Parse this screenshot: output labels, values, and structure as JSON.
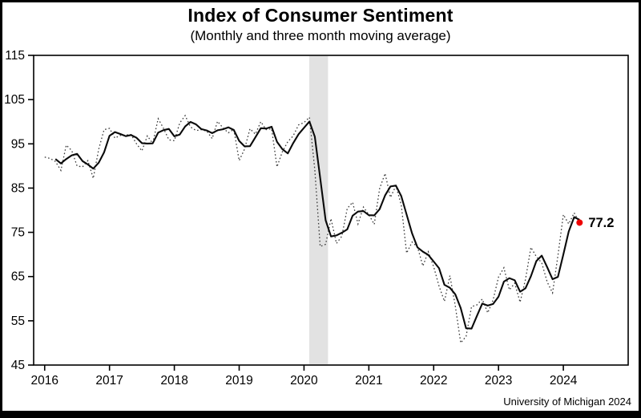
{
  "chart_data": {
    "type": "line",
    "title": "Index of Consumer Sentiment",
    "subtitle": "(Monthly and three month moving average)",
    "source": "University of Michigan 2024",
    "xlabel": "",
    "ylabel": "",
    "ylim": [
      45,
      115
    ],
    "y_ticks": [
      45,
      55,
      65,
      75,
      85,
      95,
      105,
      115
    ],
    "xlim": [
      2015.83,
      2025.0
    ],
    "x_ticks": [
      2016,
      2017,
      2018,
      2019,
      2020,
      2021,
      2022,
      2023,
      2024
    ],
    "grid": false,
    "legend": "none",
    "recession_band": [
      2020.08,
      2020.37
    ],
    "band_color": "#e2e2e2",
    "last_value_label": "77.2",
    "label_color": "#ee0000",
    "series": [
      {
        "name": "Monthly",
        "style": "dotted",
        "start_year": 2016,
        "start_month": 1,
        "values": [
          92.0,
          91.7,
          91.0,
          89.0,
          94.7,
          93.5,
          90.0,
          89.8,
          91.2,
          87.2,
          93.8,
          98.2,
          98.5,
          96.3,
          96.9,
          97.0,
          97.1,
          95.0,
          93.4,
          96.8,
          95.1,
          100.7,
          98.5,
          95.9,
          95.7,
          99.7,
          101.4,
          98.8,
          98.0,
          98.2,
          97.9,
          96.2,
          100.1,
          98.6,
          97.5,
          98.3,
          91.2,
          93.8,
          98.4,
          97.2,
          100.0,
          98.2,
          98.4,
          89.8,
          93.2,
          95.5,
          96.8,
          99.3,
          99.8,
          101.0,
          89.1,
          71.8,
          72.3,
          78.1,
          72.5,
          74.1,
          80.4,
          81.8,
          76.9,
          80.7,
          79.0,
          76.8,
          84.9,
          88.3,
          82.9,
          85.5,
          81.2,
          70.3,
          72.8,
          71.7,
          67.4,
          70.6,
          67.2,
          62.8,
          59.4,
          65.2,
          58.4,
          50.0,
          51.5,
          58.2,
          58.6,
          59.9,
          56.8,
          59.7,
          64.9,
          67.0,
          62.0,
          63.5,
          59.2,
          64.4,
          71.6,
          69.5,
          68.1,
          63.8,
          61.3,
          69.7,
          79.0,
          76.9,
          79.4,
          77.2
        ]
      },
      {
        "name": "Three month moving average",
        "style": "solid",
        "derived": "trailing_3_month_average_of_monthly"
      }
    ]
  }
}
